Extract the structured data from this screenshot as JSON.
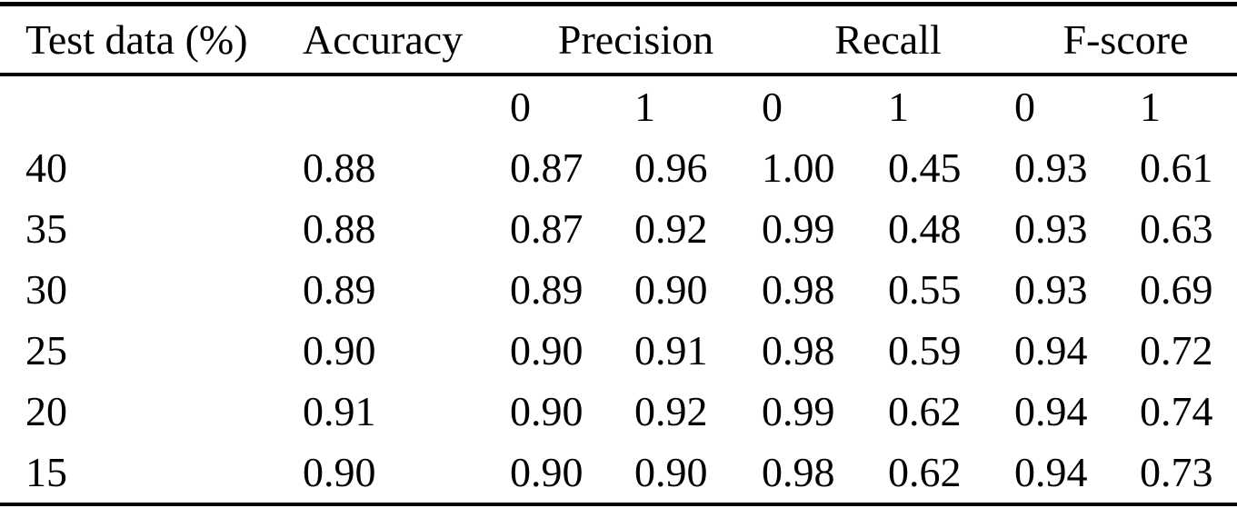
{
  "page": {
    "background_color": "#ffffff",
    "text_color": "#000000",
    "rule_color": "#000000"
  },
  "table": {
    "header": {
      "test_data": "Test data (%)",
      "accuracy": "Accuracy",
      "precision": "Precision",
      "recall": "Recall",
      "fscore": "F-score"
    },
    "subheader": {
      "precision_0": "0",
      "precision_1": "1",
      "recall_0": "0",
      "recall_1": "1",
      "fscore_0": "0",
      "fscore_1": "1"
    },
    "rows": [
      {
        "test_data": "40",
        "accuracy": "0.88",
        "precision_0": "0.87",
        "precision_1": "0.96",
        "recall_0": "1.00",
        "recall_1": "0.45",
        "fscore_0": "0.93",
        "fscore_1": "0.61"
      },
      {
        "test_data": "35",
        "accuracy": "0.88",
        "precision_0": "0.87",
        "precision_1": "0.92",
        "recall_0": "0.99",
        "recall_1": "0.48",
        "fscore_0": "0.93",
        "fscore_1": "0.63"
      },
      {
        "test_data": "30",
        "accuracy": "0.89",
        "precision_0": "0.89",
        "precision_1": "0.90",
        "recall_0": "0.98",
        "recall_1": "0.55",
        "fscore_0": "0.93",
        "fscore_1": "0.69"
      },
      {
        "test_data": "25",
        "accuracy": "0.90",
        "precision_0": "0.90",
        "precision_1": "0.91",
        "recall_0": "0.98",
        "recall_1": "0.59",
        "fscore_0": "0.94",
        "fscore_1": "0.72"
      },
      {
        "test_data": "20",
        "accuracy": "0.91",
        "precision_0": "0.90",
        "precision_1": "0.92",
        "recall_0": "0.99",
        "recall_1": "0.62",
        "fscore_0": "0.94",
        "fscore_1": "0.74"
      },
      {
        "test_data": "15",
        "accuracy": "0.90",
        "precision_0": "0.90",
        "precision_1": "0.90",
        "recall_0": "0.98",
        "recall_1": "0.62",
        "fscore_0": "0.94",
        "fscore_1": "0.73"
      }
    ]
  },
  "chart_data": {
    "type": "table",
    "columns": [
      "Test data (%)",
      "Accuracy",
      "Precision 0",
      "Precision 1",
      "Recall 0",
      "Recall 1",
      "F-score 0",
      "F-score 1"
    ],
    "rows": [
      [
        40,
        0.88,
        0.87,
        0.96,
        1.0,
        0.45,
        0.93,
        0.61
      ],
      [
        35,
        0.88,
        0.87,
        0.92,
        0.99,
        0.48,
        0.93,
        0.63
      ],
      [
        30,
        0.89,
        0.89,
        0.9,
        0.98,
        0.55,
        0.93,
        0.69
      ],
      [
        25,
        0.9,
        0.9,
        0.91,
        0.98,
        0.59,
        0.94,
        0.72
      ],
      [
        20,
        0.91,
        0.9,
        0.92,
        0.99,
        0.62,
        0.94,
        0.74
      ],
      [
        15,
        0.9,
        0.9,
        0.9,
        0.98,
        0.62,
        0.94,
        0.73
      ]
    ]
  }
}
